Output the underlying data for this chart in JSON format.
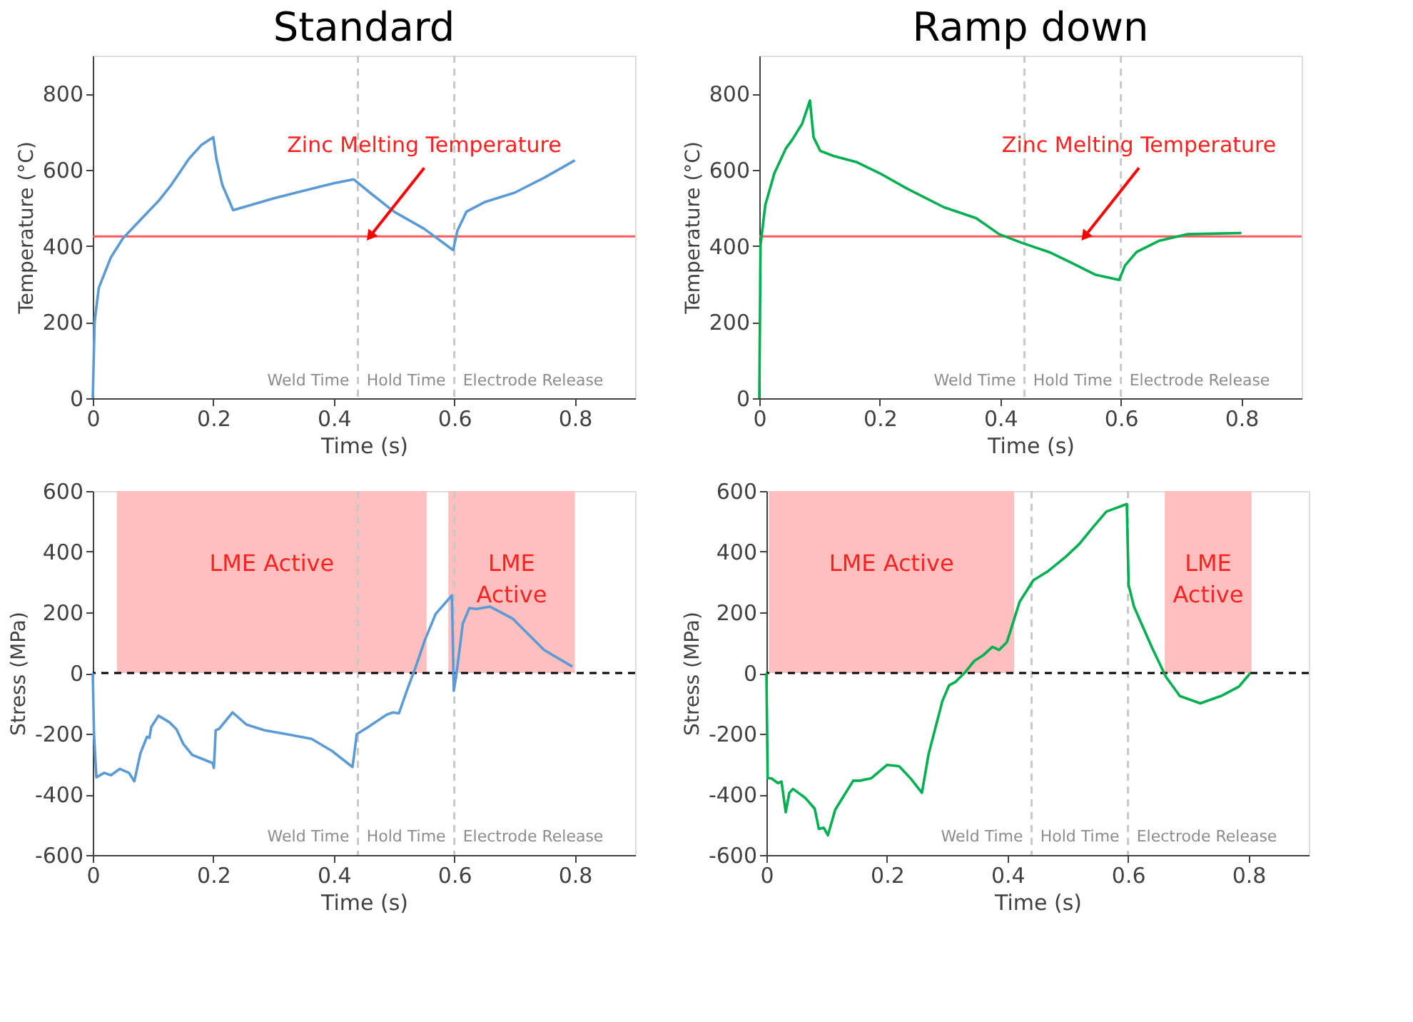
{
  "chart_data": [
    {
      "type": "line",
      "title": "Standard",
      "xlabel": "Time (s)",
      "ylabel": "Temperature (°C)",
      "xlim": [
        0,
        0.9
      ],
      "xticks": [
        0,
        0.2,
        0.4,
        0.6,
        0.8
      ],
      "ylim": [
        0,
        900
      ],
      "yticks": [
        0,
        200,
        400,
        600,
        800
      ],
      "grid": false,
      "line_style": "solid",
      "marker": "none",
      "series": [
        {
          "color": "#5b9bd5",
          "x": [
            0,
            0.003,
            0.01,
            0.03,
            0.05,
            0.08,
            0.11,
            0.13,
            0.16,
            0.18,
            0.2,
            0.205,
            0.215,
            0.233,
            0.3,
            0.35,
            0.4,
            0.433,
            0.46,
            0.5,
            0.55,
            0.598,
            0.605,
            0.62,
            0.65,
            0.7,
            0.75,
            0.8
          ],
          "values": [
            0,
            200,
            290,
            370,
            420,
            470,
            520,
            560,
            630,
            665,
            686,
            630,
            560,
            494,
            525,
            545,
            565,
            575,
            540,
            490,
            445,
            389,
            440,
            490,
            515,
            540,
            580,
            625
          ]
        }
      ],
      "ref_lines": [
        {
          "axis": "x",
          "value": 0.44,
          "color": "#c8c8c8",
          "line_style": "dashed"
        },
        {
          "axis": "x",
          "value": 0.6,
          "color": "#c8c8c8",
          "line_style": "dashed"
        },
        {
          "axis": "y",
          "value": 425,
          "color": "#ff5a5a",
          "line_style": "solid"
        }
      ],
      "annotations": [
        "Weld Time",
        "Hold Time",
        "Electrode Release",
        {
          "text": "Zinc Melting Temperature",
          "x": 0.46,
          "y": 425
        }
      ]
    },
    {
      "type": "line",
      "title": "Ramp down",
      "xlabel": "Time (s)",
      "ylabel": "Temperature (°C)",
      "xlim": [
        0,
        0.9
      ],
      "xticks": [
        0,
        0.2,
        0.4,
        0.6,
        0.8
      ],
      "ylim": [
        0,
        900
      ],
      "yticks": [
        0,
        200,
        400,
        600,
        800
      ],
      "grid": false,
      "line_style": "solid",
      "marker": "none",
      "series": [
        {
          "color": "#00b050",
          "x": [
            0,
            0.002,
            0.01,
            0.025,
            0.044,
            0.055,
            0.071,
            0.084,
            0.09,
            0.101,
            0.124,
            0.162,
            0.2,
            0.246,
            0.306,
            0.36,
            0.398,
            0.436,
            0.481,
            0.519,
            0.557,
            0.597,
            0.607,
            0.626,
            0.664,
            0.71,
            0.8
          ],
          "values": [
            0,
            402,
            508,
            591,
            656,
            680,
            721,
            782,
            686,
            650,
            636,
            620,
            591,
            550,
            502,
            473,
            431,
            408,
            384,
            355,
            325,
            311,
            349,
            384,
            414,
            431,
            434
          ]
        }
      ],
      "ref_lines": [
        {
          "axis": "x",
          "value": 0.44,
          "color": "#c8c8c8",
          "line_style": "dashed"
        },
        {
          "axis": "x",
          "value": 0.6,
          "color": "#c8c8c8",
          "line_style": "dashed"
        },
        {
          "axis": "y",
          "value": 425,
          "color": "#ff5a5a",
          "line_style": "solid"
        }
      ],
      "annotations": [
        "Weld Time",
        "Hold Time",
        "Electrode Release",
        {
          "text": "Zinc Melting Temperature",
          "x": 0.54,
          "y": 425
        }
      ]
    },
    {
      "type": "line",
      "xlabel": "Time (s)",
      "ylabel": "Stress (MPa)",
      "xlim": [
        0,
        0.9
      ],
      "xticks": [
        0,
        0.2,
        0.4,
        0.6,
        0.8
      ],
      "ylim": [
        -600,
        600
      ],
      "yticks": [
        -600,
        -400,
        -200,
        0,
        200,
        400,
        600
      ],
      "grid": false,
      "line_style": "solid",
      "marker": "none",
      "series": [
        {
          "color": "#5b9bd5",
          "x": [
            0,
            0.002,
            0.006,
            0.019,
            0.03,
            0.045,
            0.06,
            0.069,
            0.079,
            0.09,
            0.094,
            0.097,
            0.109,
            0.127,
            0.139,
            0.15,
            0.165,
            0.199,
            0.201,
            0.204,
            0.21,
            0.232,
            0.255,
            0.285,
            0.322,
            0.363,
            0.397,
            0.431,
            0.434,
            0.438,
            0.457,
            0.487,
            0.498,
            0.508,
            0.521,
            0.536,
            0.551,
            0.569,
            0.596,
            0.599,
            0.603,
            0.614,
            0.625,
            0.637,
            0.659,
            0.697,
            0.749,
            0.796
          ],
          "values": [
            0,
            -202,
            -344,
            -329,
            -337,
            -316,
            -329,
            -357,
            -265,
            -210,
            -214,
            -178,
            -141,
            -162,
            -186,
            -233,
            -270,
            -297,
            -313,
            -189,
            -183,
            -130,
            -170,
            -189,
            -202,
            -217,
            -257,
            -310,
            -265,
            -202,
            -178,
            -138,
            -130,
            -133,
            -59,
            21,
            108,
            195,
            256,
            -59,
            -11,
            163,
            214,
            211,
            219,
            179,
            76,
            21
          ]
        }
      ],
      "ref_lines": [
        {
          "axis": "x",
          "value": 0.44,
          "color": "#c8c8c8",
          "line_style": "dashed"
        },
        {
          "axis": "x",
          "value": 0.6,
          "color": "#c8c8c8",
          "line_style": "dashed"
        },
        {
          "axis": "y",
          "value": 0,
          "color": "#000000",
          "line_style": "dashed"
        }
      ],
      "bands": [
        {
          "axis": "x",
          "from": 0.04,
          "to": 0.554,
          "label": "LME Active",
          "color": "#ffbfbf"
        },
        {
          "axis": "x",
          "from": 0.59,
          "to": 0.8,
          "label": "LME Active",
          "color": "#ffbfbf"
        }
      ],
      "annotations": [
        "Weld Time",
        "Hold Time",
        "Electrode Release"
      ]
    },
    {
      "type": "line",
      "xlabel": "Time (s)",
      "ylabel": "Stress (MPa)",
      "xlim": [
        0,
        0.9
      ],
      "xticks": [
        0,
        0.2,
        0.4,
        0.6,
        0.8
      ],
      "ylim": [
        -600,
        600
      ],
      "yticks": [
        -600,
        -400,
        -200,
        0,
        200,
        400,
        600
      ],
      "grid": false,
      "line_style": "solid",
      "marker": "none",
      "series": [
        {
          "color": "#00b050",
          "x": [
            0,
            0.002,
            0.008,
            0.019,
            0.025,
            0.032,
            0.038,
            0.044,
            0.053,
            0.064,
            0.08,
            0.087,
            0.095,
            0.102,
            0.114,
            0.129,
            0.144,
            0.155,
            0.174,
            0.2,
            0.22,
            0.239,
            0.258,
            0.269,
            0.292,
            0.303,
            0.314,
            0.33,
            0.345,
            0.36,
            0.375,
            0.386,
            0.399,
            0.405,
            0.42,
            0.443,
            0.466,
            0.496,
            0.519,
            0.542,
            0.564,
            0.598,
            0.601,
            0.61,
            0.64,
            0.663,
            0.686,
            0.72,
            0.754,
            0.784,
            0.803
          ],
          "values": [
            0,
            -347,
            -347,
            -363,
            -358,
            -459,
            -395,
            -382,
            -395,
            -411,
            -447,
            -514,
            -510,
            -535,
            -451,
            -403,
            -355,
            -355,
            -347,
            -303,
            -307,
            -347,
            -395,
            -268,
            -92,
            -41,
            -29,
            3,
            40,
            59,
            86,
            76,
            102,
            139,
            234,
            306,
            334,
            382,
            425,
            481,
            532,
            557,
            290,
            218,
            83,
            -13,
            -76,
            -100,
            -76,
            -45,
            0
          ]
        }
      ],
      "ref_lines": [
        {
          "axis": "x",
          "value": 0.44,
          "color": "#c8c8c8",
          "line_style": "dashed"
        },
        {
          "axis": "x",
          "value": 0.6,
          "color": "#c8c8c8",
          "line_style": "dashed"
        },
        {
          "axis": "y",
          "value": 0,
          "color": "#000000",
          "line_style": "dashed"
        }
      ],
      "bands": [
        {
          "axis": "x",
          "from": 0.004,
          "to": 0.411,
          "label": "LME Active",
          "color": "#ffbfbf"
        },
        {
          "axis": "x",
          "from": 0.661,
          "to": 0.805,
          "label": "LME Active",
          "color": "#ffbfbf"
        }
      ],
      "annotations": [
        "Weld Time",
        "Hold Time",
        "Electrode Release"
      ]
    }
  ]
}
